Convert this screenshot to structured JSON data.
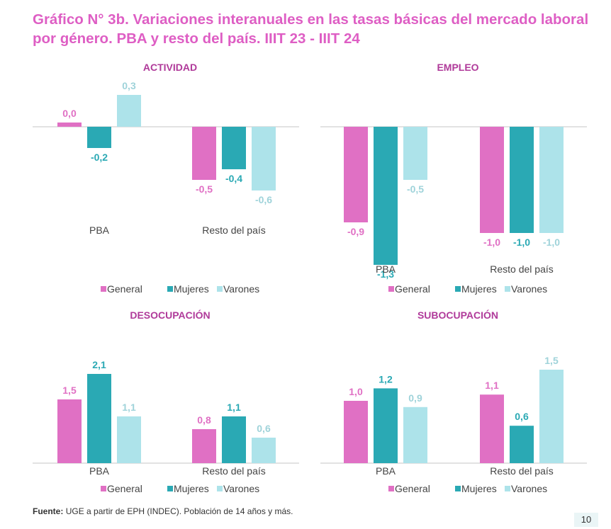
{
  "title": "Gráfico N° 3b. Variaciones interanuales en las tasas básicas del mercado laboral por género. PBA y resto del país. IIIT 23 - IIIT 24",
  "source_label": "Fuente:",
  "source_text": "UGE a partir de EPH (INDEC). Población de 14 años y más.",
  "page_number": "10",
  "colors": {
    "General": "#e070c4",
    "Mujeres": "#2aa9b4",
    "Varones": "#ade3ea",
    "title": "#de5ec4",
    "panel_title": "#b03a9a"
  },
  "chart_data": [
    {
      "type": "bar",
      "title": "ACTIVIDAD",
      "categories": [
        "PBA",
        "Resto del país"
      ],
      "series": [
        {
          "name": "General",
          "values": [
            0.0,
            -0.5
          ],
          "labels": [
            "0,0",
            "-0,5"
          ]
        },
        {
          "name": "Mujeres",
          "values": [
            -0.2,
            -0.4
          ],
          "labels": [
            "-0,2",
            "-0,4"
          ]
        },
        {
          "name": "Varones",
          "values": [
            0.3,
            -0.6
          ],
          "labels": [
            "0,3",
            "-0,6"
          ]
        }
      ],
      "legend": "bottom"
    },
    {
      "type": "bar",
      "title": "EMPLEO",
      "categories": [
        "PBA",
        "Resto del país"
      ],
      "series": [
        {
          "name": "General",
          "values": [
            -0.9,
            -1.0
          ],
          "labels": [
            "-0,9",
            "-1,0"
          ]
        },
        {
          "name": "Mujeres",
          "values": [
            -1.3,
            -1.0
          ],
          "labels": [
            "-1,3",
            "-1,0"
          ]
        },
        {
          "name": "Varones",
          "values": [
            -0.5,
            -1.0
          ],
          "labels": [
            "-0,5",
            "-1,0"
          ]
        }
      ],
      "legend": "bottom"
    },
    {
      "type": "bar",
      "title": "DESOCUPACIÓN",
      "categories": [
        "PBA",
        "Resto del país"
      ],
      "series": [
        {
          "name": "General",
          "values": [
            1.5,
            0.8
          ],
          "labels": [
            "1,5",
            "0,8"
          ]
        },
        {
          "name": "Mujeres",
          "values": [
            2.1,
            1.1
          ],
          "labels": [
            "2,1",
            "1,1"
          ]
        },
        {
          "name": "Varones",
          "values": [
            1.1,
            0.6
          ],
          "labels": [
            "1,1",
            "0,6"
          ]
        }
      ],
      "legend": "bottom"
    },
    {
      "type": "bar",
      "title": "SUBOCUPACIÓN",
      "categories": [
        "PBA",
        "Resto del país"
      ],
      "series": [
        {
          "name": "General",
          "values": [
            1.0,
            1.1
          ],
          "labels": [
            "1,0",
            "1,1"
          ]
        },
        {
          "name": "Mujeres",
          "values": [
            1.2,
            0.6
          ],
          "labels": [
            "1,2",
            "0,6"
          ]
        },
        {
          "name": "Varones",
          "values": [
            0.9,
            1.5
          ],
          "labels": [
            "0,9",
            "1,5"
          ]
        }
      ],
      "legend": "bottom"
    }
  ]
}
